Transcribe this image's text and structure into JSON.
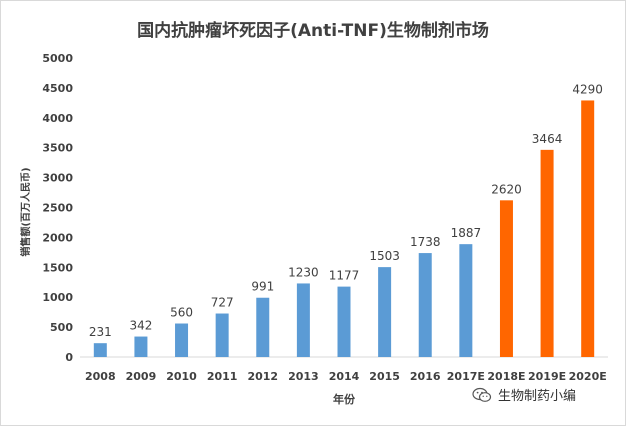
{
  "chart_data": {
    "type": "bar",
    "title": "国内抗肿瘤坏死因子(Anti-TNF)生物制剂市场",
    "xlabel": "年份",
    "ylabel": "销售额(百万人民币)",
    "categories": [
      "2008",
      "2009",
      "2010",
      "2011",
      "2012",
      "2013",
      "2014",
      "2015",
      "2016",
      "2017E",
      "2018E",
      "2019E",
      "2020E"
    ],
    "values": [
      231,
      342,
      560,
      727,
      991,
      1230,
      1177,
      1503,
      1738,
      1887,
      2620,
      3464,
      4290
    ],
    "data_labels": [
      "231",
      "342",
      "560",
      "727",
      "991",
      "1230",
      "1177",
      "1503",
      "1738",
      "1887",
      "2620",
      "3464",
      "4290"
    ],
    "colors": [
      "#5b9bd5",
      "#5b9bd5",
      "#5b9bd5",
      "#5b9bd5",
      "#5b9bd5",
      "#5b9bd5",
      "#5b9bd5",
      "#5b9bd5",
      "#5b9bd5",
      "#5b9bd5",
      "#ff6600",
      "#ff6600",
      "#ff6600"
    ],
    "ylim": [
      0,
      5000
    ],
    "yticks": [
      0,
      500,
      1000,
      1500,
      2000,
      2500,
      3000,
      3500,
      4000,
      4500,
      5000
    ],
    "grid": false,
    "legend": "none"
  },
  "watermark": {
    "text": "生物制药小编",
    "icon": "wechat-icon"
  }
}
